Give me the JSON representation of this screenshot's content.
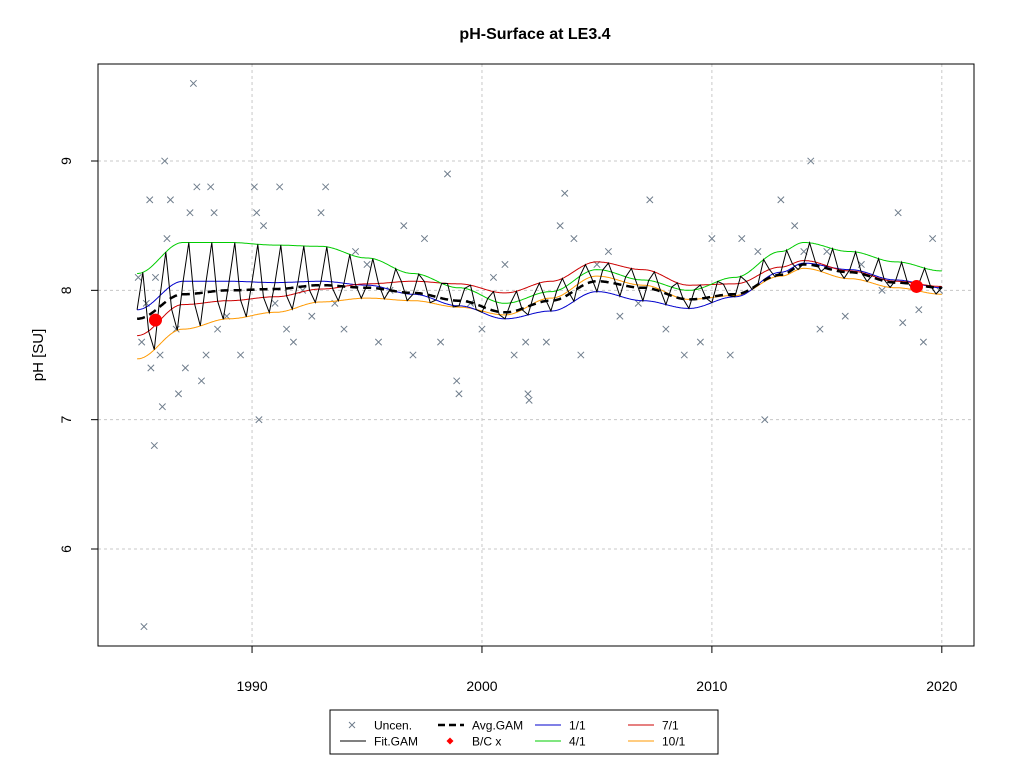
{
  "chart_data": {
    "type": "line",
    "title": "pH-Surface at LE3.4",
    "xlabel": "",
    "ylabel": "pH [SU]",
    "xlim": [
      1983.3,
      2021.4
    ],
    "ylim": [
      5.25,
      9.75
    ],
    "x_ticks": [
      1990,
      2000,
      2010,
      2020
    ],
    "x_tick_labels": [
      "1990",
      "2000",
      "2010",
      "2020"
    ],
    "y_ticks": [
      6,
      7,
      8,
      9
    ],
    "y_tick_labels": [
      "6",
      "7",
      "8",
      "9"
    ],
    "grid": true,
    "legend_position": "bottom-center",
    "legend": [
      {
        "key": "uncen",
        "label": "Uncen.",
        "color": "#6f7d8c",
        "symbol": "x"
      },
      {
        "key": "fitgam",
        "label": "Fit.GAM",
        "color": "#000000",
        "symbol": "line"
      },
      {
        "key": "avggam",
        "label": "Avg.GAM",
        "color": "#000000",
        "symbol": "dashed"
      },
      {
        "key": "bcx",
        "label": "B/C x",
        "color": "#ff0000",
        "symbol": "dot"
      },
      {
        "key": "d0101",
        "label": "1/1",
        "color": "#0000cc",
        "symbol": "line"
      },
      {
        "key": "d0401",
        "label": "4/1",
        "color": "#00cc00",
        "symbol": "line"
      },
      {
        "key": "d0701",
        "label": "7/1",
        "color": "#cc0000",
        "symbol": "line"
      },
      {
        "key": "d1001",
        "label": "10/1",
        "color": "#ff9900",
        "symbol": "line"
      }
    ],
    "series": [
      {
        "key": "avggam",
        "name": "Avg.GAM",
        "color": "#000000",
        "points": [
          [
            1985,
            7.78
          ],
          [
            1987,
            7.97
          ],
          [
            1989,
            8.0
          ],
          [
            1991,
            8.01
          ],
          [
            1993,
            8.04
          ],
          [
            1995,
            8.02
          ],
          [
            1997,
            7.98
          ],
          [
            1999,
            7.92
          ],
          [
            2001,
            7.83
          ],
          [
            2003,
            7.92
          ],
          [
            2005,
            8.07
          ],
          [
            2007,
            8.02
          ],
          [
            2009,
            7.93
          ],
          [
            2011,
            7.97
          ],
          [
            2013,
            8.12
          ],
          [
            2014,
            8.2
          ],
          [
            2016,
            8.14
          ],
          [
            2018,
            8.06
          ],
          [
            2020,
            8.02
          ]
        ]
      },
      {
        "key": "d0101",
        "name": "1/1",
        "color": "#0000cc",
        "points": [
          [
            1985,
            7.85
          ],
          [
            1987,
            8.07
          ],
          [
            1989,
            8.07
          ],
          [
            1991,
            8.06
          ],
          [
            1993,
            8.07
          ],
          [
            1995,
            8.04
          ],
          [
            1997,
            7.97
          ],
          [
            1999,
            7.88
          ],
          [
            2001,
            7.78
          ],
          [
            2003,
            7.84
          ],
          [
            2005,
            7.99
          ],
          [
            2007,
            7.92
          ],
          [
            2009,
            7.86
          ],
          [
            2011,
            7.95
          ],
          [
            2013,
            8.14
          ],
          [
            2014,
            8.21
          ],
          [
            2016,
            8.16
          ],
          [
            2018,
            8.08
          ],
          [
            2020,
            8.02
          ]
        ]
      },
      {
        "key": "d0401",
        "name": "4/1",
        "color": "#00cc00",
        "points": [
          [
            1985,
            8.13
          ],
          [
            1987,
            8.37
          ],
          [
            1989,
            8.37
          ],
          [
            1991,
            8.35
          ],
          [
            1993,
            8.34
          ],
          [
            1995,
            8.25
          ],
          [
            1997,
            8.13
          ],
          [
            1999,
            8.02
          ],
          [
            2001,
            7.9
          ],
          [
            2003,
            7.99
          ],
          [
            2005,
            8.16
          ],
          [
            2007,
            8.08
          ],
          [
            2009,
            8.0
          ],
          [
            2011,
            8.1
          ],
          [
            2013,
            8.3
          ],
          [
            2014,
            8.37
          ],
          [
            2016,
            8.3
          ],
          [
            2018,
            8.22
          ],
          [
            2020,
            8.15
          ]
        ]
      },
      {
        "key": "d0701",
        "name": "7/1",
        "color": "#cc0000",
        "points": [
          [
            1985,
            7.65
          ],
          [
            1987,
            7.89
          ],
          [
            1989,
            7.92
          ],
          [
            1991,
            7.95
          ],
          [
            1993,
            8.01
          ],
          [
            1995,
            8.05
          ],
          [
            1997,
            8.07
          ],
          [
            1999,
            8.05
          ],
          [
            2001,
            7.98
          ],
          [
            2003,
            8.07
          ],
          [
            2005,
            8.22
          ],
          [
            2007,
            8.16
          ],
          [
            2009,
            8.04
          ],
          [
            2011,
            8.05
          ],
          [
            2013,
            8.18
          ],
          [
            2014,
            8.23
          ],
          [
            2016,
            8.15
          ],
          [
            2018,
            8.07
          ],
          [
            2020,
            8.03
          ]
        ]
      },
      {
        "key": "d1001",
        "name": "10/1",
        "color": "#ff9900",
        "points": [
          [
            1985,
            7.47
          ],
          [
            1987,
            7.7
          ],
          [
            1989,
            7.78
          ],
          [
            1991,
            7.83
          ],
          [
            1993,
            7.91
          ],
          [
            1995,
            7.94
          ],
          [
            1997,
            7.92
          ],
          [
            1999,
            7.87
          ],
          [
            2001,
            7.81
          ],
          [
            2003,
            7.94
          ],
          [
            2005,
            8.11
          ],
          [
            2007,
            8.04
          ],
          [
            2009,
            7.93
          ],
          [
            2011,
            7.96
          ],
          [
            2013,
            8.11
          ],
          [
            2014,
            8.17
          ],
          [
            2016,
            8.09
          ],
          [
            2018,
            8.02
          ],
          [
            2020,
            7.97
          ]
        ]
      }
    ],
    "fit_gam": {
      "name": "Fit.GAM",
      "color": "#000000",
      "x_start": 1985,
      "x_end": 2020,
      "step": 0.25,
      "seasonal_keys": [
        "d0101",
        "d0401",
        "d0701",
        "d1001"
      ]
    },
    "bc_points": [
      [
        1985.8,
        7.77
      ],
      [
        2018.9,
        8.03
      ]
    ],
    "observations": [
      [
        1985.05,
        8.1
      ],
      [
        1985.2,
        7.6
      ],
      [
        1985.3,
        5.4
      ],
      [
        1985.4,
        7.9
      ],
      [
        1985.55,
        8.7
      ],
      [
        1985.6,
        7.4
      ],
      [
        1985.75,
        6.8
      ],
      [
        1985.8,
        8.1
      ],
      [
        1986.0,
        7.5
      ],
      [
        1986.1,
        7.1
      ],
      [
        1986.2,
        9.0
      ],
      [
        1986.3,
        8.4
      ],
      [
        1986.45,
        8.7
      ],
      [
        1986.7,
        7.7
      ],
      [
        1986.8,
        7.2
      ],
      [
        1987.1,
        7.4
      ],
      [
        1987.3,
        8.6
      ],
      [
        1987.45,
        9.6
      ],
      [
        1987.6,
        8.8
      ],
      [
        1987.8,
        7.3
      ],
      [
        1988.0,
        7.5
      ],
      [
        1988.2,
        8.8
      ],
      [
        1988.35,
        8.6
      ],
      [
        1988.5,
        7.7
      ],
      [
        1988.9,
        7.8
      ],
      [
        1989.5,
        7.5
      ],
      [
        1990.1,
        8.8
      ],
      [
        1990.2,
        8.6
      ],
      [
        1990.3,
        7.0
      ],
      [
        1990.5,
        8.5
      ],
      [
        1991.0,
        7.9
      ],
      [
        1991.2,
        8.8
      ],
      [
        1991.5,
        7.7
      ],
      [
        1991.8,
        7.6
      ],
      [
        1992.2,
        8.0
      ],
      [
        1992.6,
        7.8
      ],
      [
        1993.0,
        8.6
      ],
      [
        1993.2,
        8.8
      ],
      [
        1993.6,
        7.9
      ],
      [
        1994.0,
        7.7
      ],
      [
        1994.5,
        8.3
      ],
      [
        1995.0,
        8.2
      ],
      [
        1995.5,
        7.6
      ],
      [
        1996.0,
        8.0
      ],
      [
        1996.6,
        8.5
      ],
      [
        1997.0,
        7.5
      ],
      [
        1997.5,
        8.4
      ],
      [
        1998.2,
        7.6
      ],
      [
        1998.5,
        8.9
      ],
      [
        1998.9,
        7.3
      ],
      [
        1999.0,
        7.2
      ],
      [
        1999.5,
        7.9
      ],
      [
        2000.0,
        7.7
      ],
      [
        2000.5,
        8.1
      ],
      [
        2001.0,
        8.2
      ],
      [
        2001.4,
        7.5
      ],
      [
        2001.9,
        7.6
      ],
      [
        2002.0,
        7.2
      ],
      [
        2002.05,
        7.15
      ],
      [
        2002.8,
        7.6
      ],
      [
        2003.4,
        8.5
      ],
      [
        2003.6,
        8.75
      ],
      [
        2004.0,
        8.4
      ],
      [
        2004.3,
        7.5
      ],
      [
        2005.0,
        8.2
      ],
      [
        2005.5,
        8.3
      ],
      [
        2006.0,
        7.8
      ],
      [
        2006.8,
        7.9
      ],
      [
        2007.3,
        8.7
      ],
      [
        2008.0,
        7.7
      ],
      [
        2008.8,
        7.5
      ],
      [
        2009.5,
        7.6
      ],
      [
        2010.0,
        8.4
      ],
      [
        2010.8,
        7.5
      ],
      [
        2011.3,
        8.4
      ],
      [
        2012.0,
        8.3
      ],
      [
        2012.3,
        7.0
      ],
      [
        2013.0,
        8.7
      ],
      [
        2013.6,
        8.5
      ],
      [
        2014.0,
        8.3
      ],
      [
        2014.3,
        9.0
      ],
      [
        2014.7,
        7.7
      ],
      [
        2015.0,
        8.3
      ],
      [
        2015.8,
        7.8
      ],
      [
        2016.5,
        8.2
      ],
      [
        2017.4,
        8.0
      ],
      [
        2018.1,
        8.6
      ],
      [
        2018.3,
        7.75
      ],
      [
        2019.0,
        7.85
      ],
      [
        2019.2,
        7.6
      ],
      [
        2019.6,
        8.4
      ],
      [
        2019.9,
        8.0
      ]
    ]
  }
}
